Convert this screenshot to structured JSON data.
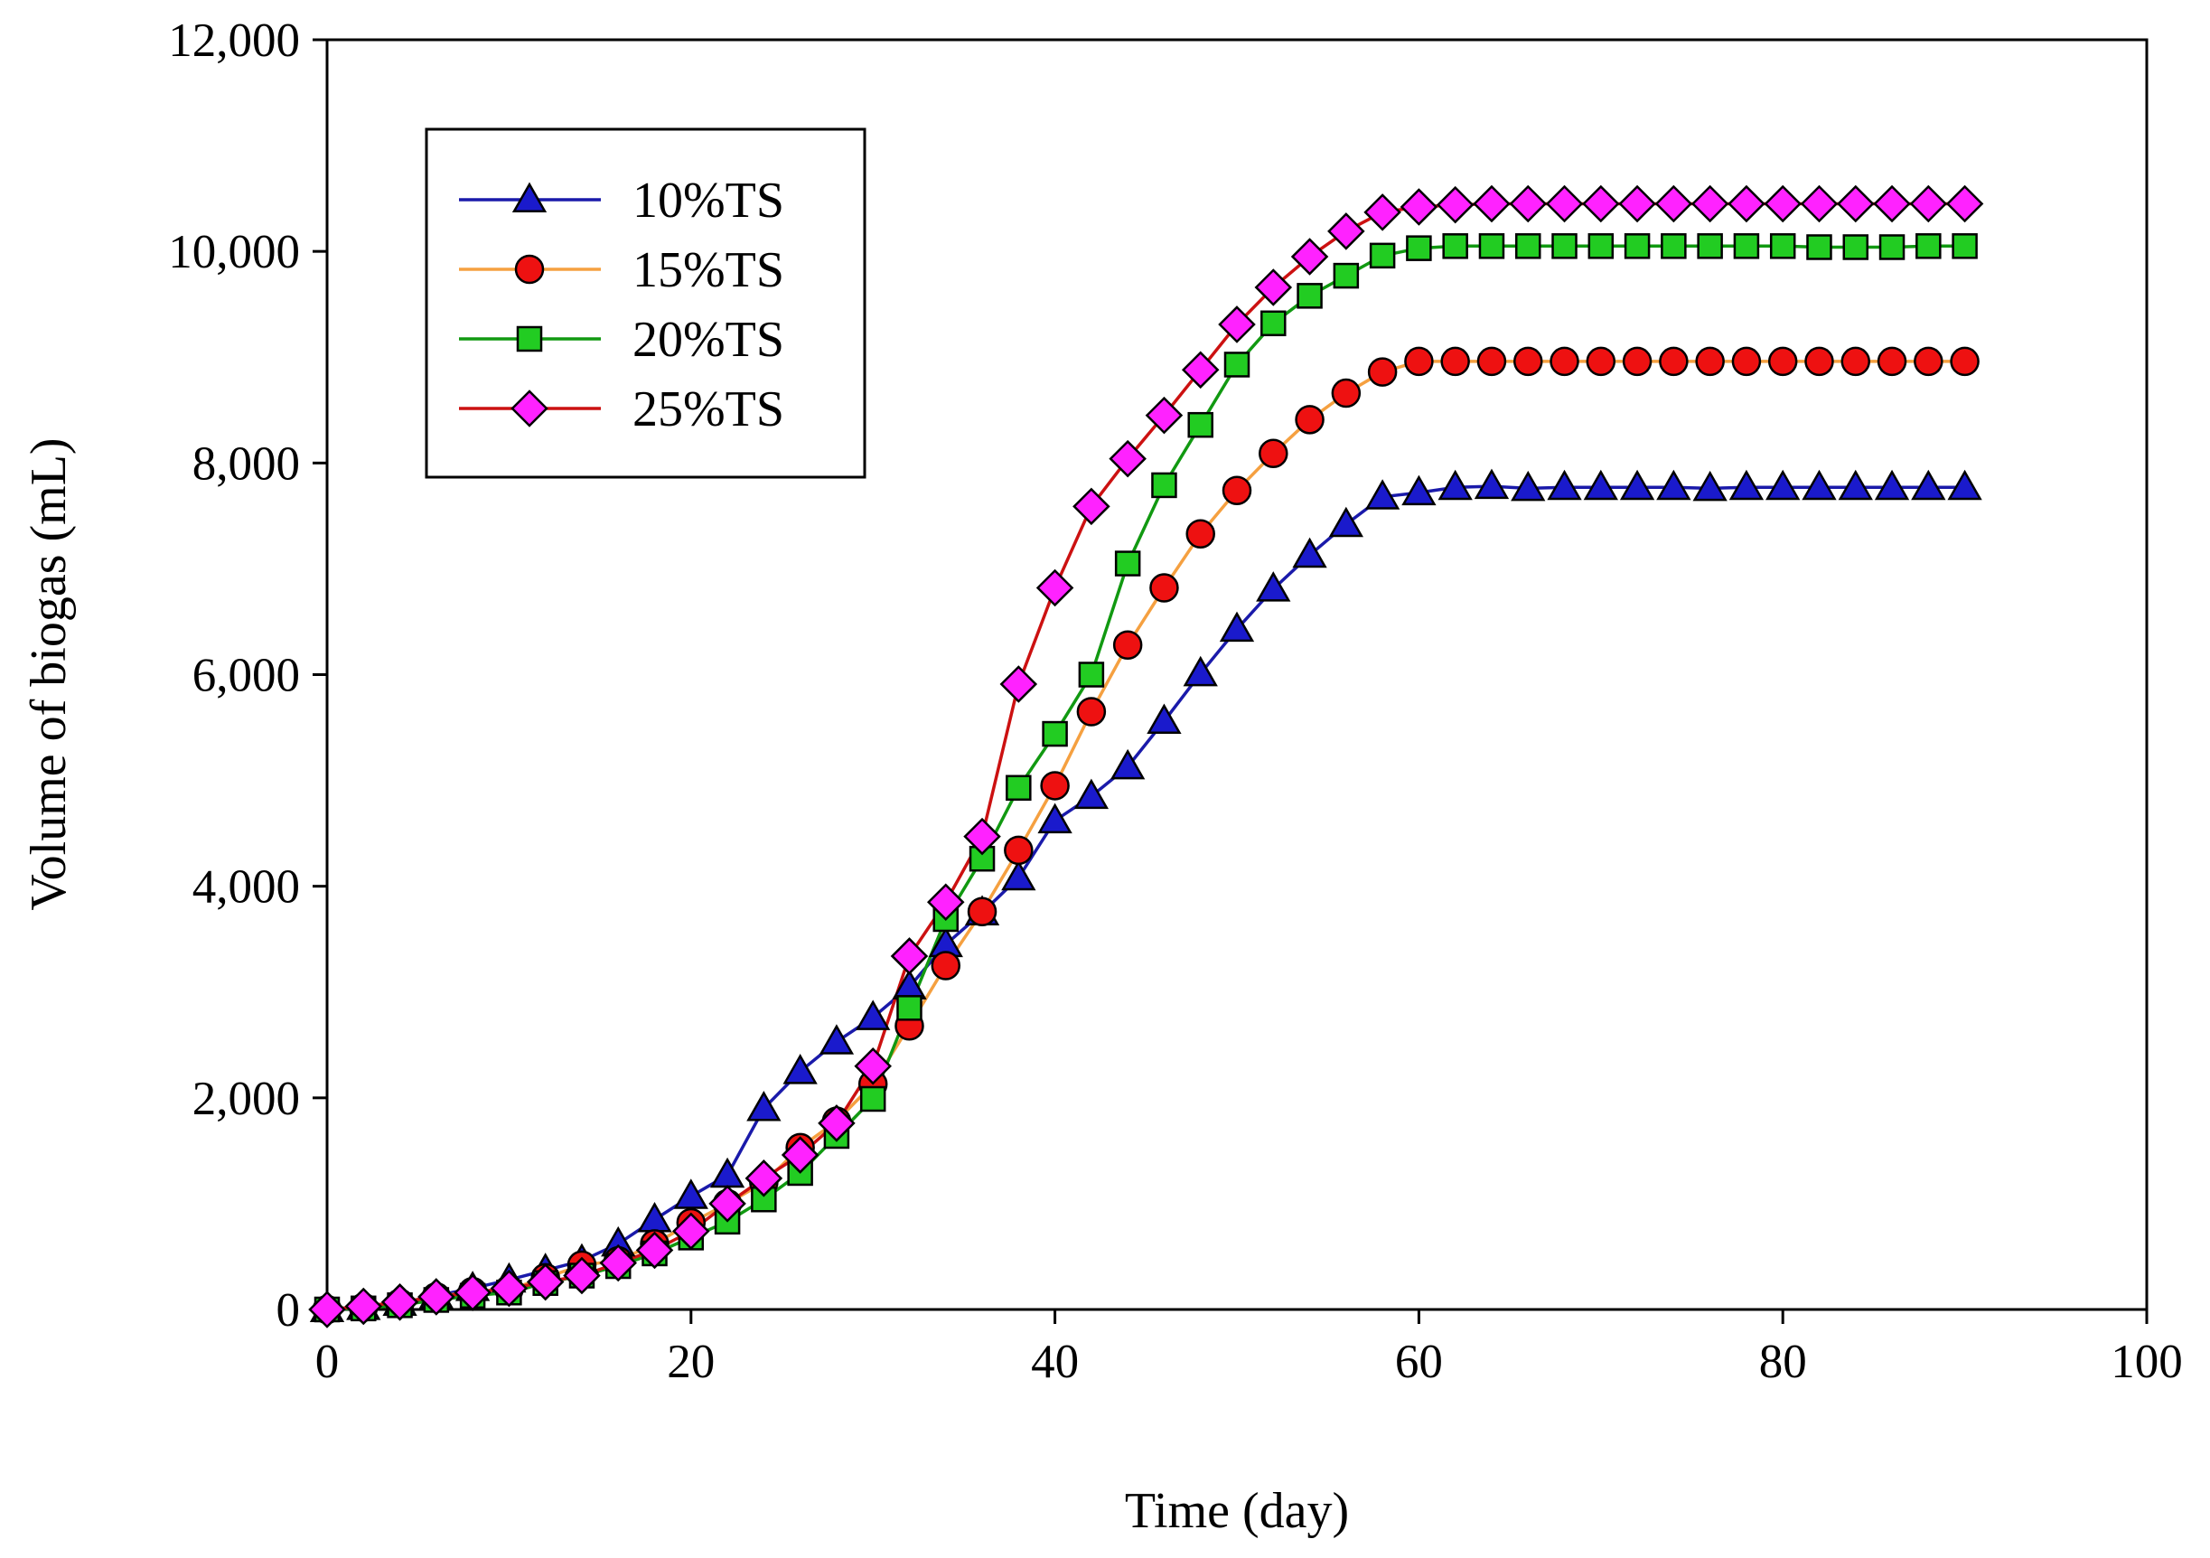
{
  "chart_data": {
    "type": "line",
    "title": "",
    "xlabel": "Time (day)",
    "ylabel": "Volume of biogas (mL)",
    "xlim": [
      0,
      100
    ],
    "ylim": [
      0,
      12000
    ],
    "xticks": [
      0,
      20,
      40,
      60,
      80,
      100
    ],
    "xtick_labels": [
      "0",
      "20",
      "40",
      "60",
      "80",
      "100"
    ],
    "yticks": [
      0,
      2000,
      4000,
      6000,
      8000,
      10000,
      12000
    ],
    "ytick_labels": [
      "0",
      "2,000",
      "4,000",
      "6,000",
      "8,000",
      "10,000",
      "12,000"
    ],
    "grid": false,
    "legend_position": "top-left",
    "x": [
      0,
      2,
      4,
      6,
      8,
      10,
      12,
      14,
      16,
      18,
      20,
      22,
      24,
      26,
      28,
      30,
      32,
      34,
      36,
      38,
      40,
      42,
      44,
      46,
      48,
      50,
      52,
      54,
      56,
      58,
      60,
      62,
      64,
      66,
      68,
      70,
      72,
      74,
      76,
      78,
      80,
      82,
      84,
      86,
      88,
      90
    ],
    "series": [
      {
        "name": "10%TS",
        "marker": "triangle",
        "marker_color": "#1a1acc",
        "line_color": "#1a1aaa",
        "values": [
          0,
          20,
          60,
          130,
          200,
          280,
          370,
          460,
          620,
          850,
          1070,
          1270,
          1900,
          2250,
          2530,
          2760,
          3050,
          3450,
          3750,
          4080,
          4620,
          4850,
          5130,
          5560,
          6010,
          6430,
          6810,
          7130,
          7420,
          7680,
          7720,
          7770,
          7780,
          7760,
          7770,
          7770,
          7770,
          7770,
          7760,
          7770,
          7770,
          7770,
          7770,
          7770,
          7770,
          7770
        ]
      },
      {
        "name": "15%TS",
        "marker": "circle",
        "marker_color": "#ee1111",
        "line_color": "#f5a040",
        "values": [
          0,
          20,
          60,
          120,
          170,
          190,
          300,
          420,
          460,
          620,
          820,
          1000,
          1200,
          1530,
          1780,
          2130,
          2680,
          3250,
          3760,
          4340,
          4950,
          5650,
          6280,
          6820,
          7330,
          7740,
          8090,
          8410,
          8660,
          8860,
          8960,
          8960,
          8960,
          8960,
          8960,
          8960,
          8960,
          8960,
          8960,
          8960,
          8960,
          8960,
          8960,
          8960,
          8960,
          8960
        ]
      },
      {
        "name": "20%TS",
        "marker": "square",
        "marker_color": "#22cc22",
        "line_color": "#119911",
        "values": [
          0,
          10,
          40,
          90,
          130,
          160,
          250,
          320,
          410,
          530,
          680,
          830,
          1040,
          1290,
          1640,
          1990,
          2850,
          3690,
          4260,
          4930,
          5440,
          6000,
          7050,
          7790,
          8360,
          8930,
          9320,
          9580,
          9770,
          9960,
          10030,
          10050,
          10050,
          10050,
          10050,
          10050,
          10050,
          10050,
          10050,
          10050,
          10050,
          10040,
          10040,
          10040,
          10050,
          10050
        ]
      },
      {
        "name": "25%TS",
        "marker": "diamond",
        "marker_color": "#ff22ff",
        "line_color": "#cc1111",
        "values": [
          0,
          30,
          70,
          120,
          160,
          200,
          260,
          320,
          440,
          560,
          740,
          1000,
          1240,
          1460,
          1760,
          2300,
          3340,
          3850,
          4470,
          5910,
          6820,
          7590,
          8040,
          8450,
          8880,
          9310,
          9660,
          9950,
          10190,
          10370,
          10420,
          10440,
          10450,
          10450,
          10450,
          10450,
          10450,
          10450,
          10450,
          10450,
          10450,
          10450,
          10450,
          10450,
          10450,
          10450
        ]
      }
    ]
  }
}
